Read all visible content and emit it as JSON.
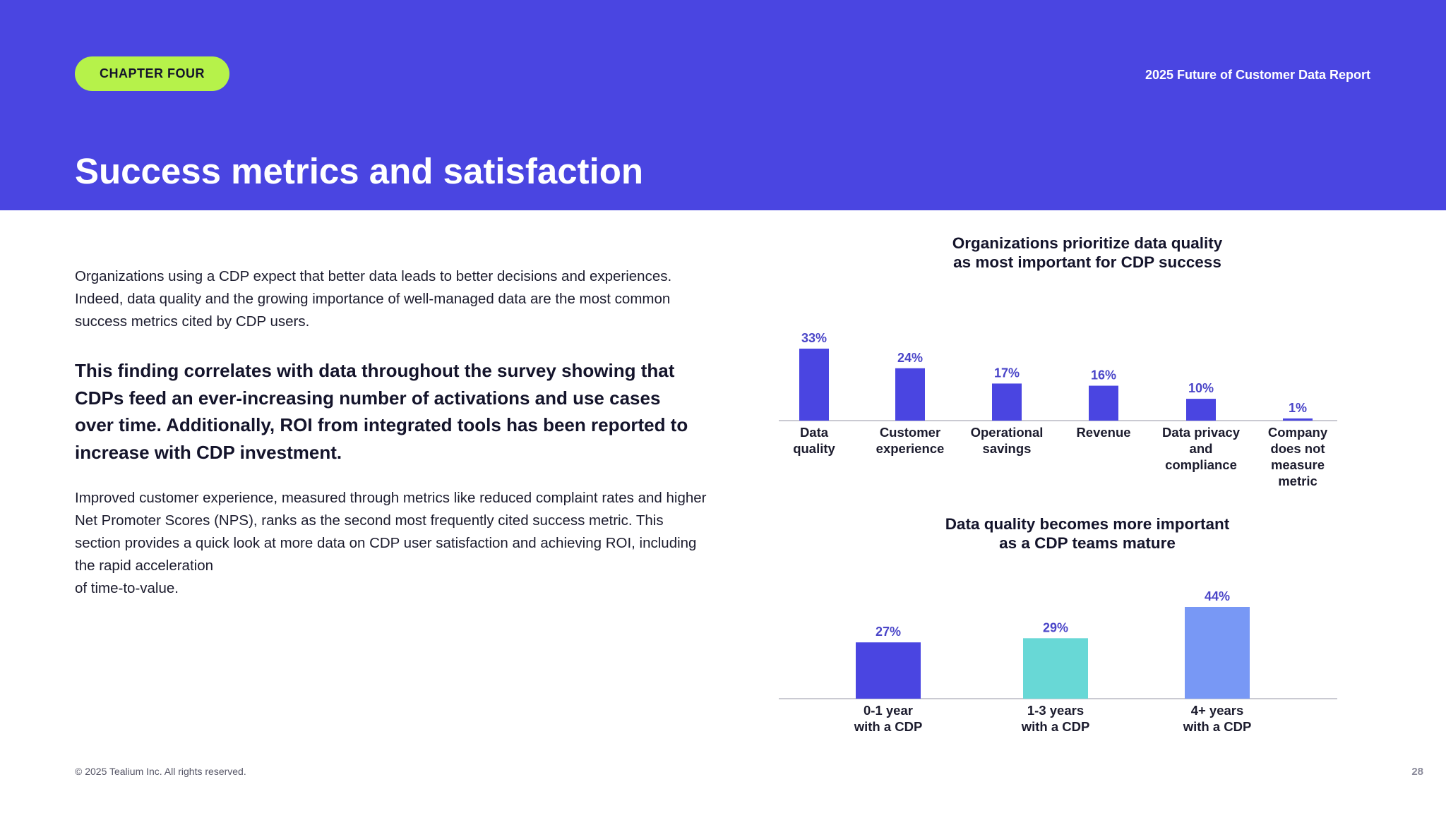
{
  "header": {
    "chapter": "CHAPTER FOUR",
    "report_title": "2025 Future of Customer Data Report",
    "page_title": "Success metrics and satisfaction"
  },
  "content": {
    "intro": "Organizations using a CDP expect that better data leads to better decisions and experiences. Indeed, data quality and the growing importance of well-managed data are the most common success metrics cited by CDP users.",
    "highlight": "This finding correlates with data throughout the survey showing that CDPs feed an ever-increasing number of activations and use cases over time. Additionally, ROI from integrated tools has been reported to increase with CDP investment.",
    "body_line1": "Improved customer experience, measured through metrics like reduced complaint rates and higher Net Promoter Scores (NPS), ranks as the second most frequently cited success metric. This section provides a quick look at more data on CDP user satisfaction and achieving ROI, including the rapid acceleration",
    "body_line2": "of time-to-value."
  },
  "chart_data": [
    {
      "type": "bar",
      "title_line1": "Organizations prioritize data quality",
      "title_line2": "as most important for CDP success",
      "categories": [
        [
          "Data",
          "quality"
        ],
        [
          "Customer",
          "experience"
        ],
        [
          "Operational",
          "savings"
        ],
        [
          "Revenue"
        ],
        [
          "Data privacy",
          "and",
          "compliance"
        ],
        [
          "Company",
          "does not",
          "measure",
          "metric"
        ]
      ],
      "values": [
        33,
        24,
        17,
        16,
        10,
        1
      ],
      "value_labels": [
        "33%",
        "24%",
        "17%",
        "16%",
        "10%",
        "1%"
      ],
      "colors": [
        "#4a45e1",
        "#4a45e1",
        "#4a45e1",
        "#4a45e1",
        "#4a45e1",
        "#4a45e1"
      ],
      "ylim": [
        0,
        33
      ],
      "grid": false
    },
    {
      "type": "bar",
      "title_line1": "Data quality becomes more important",
      "title_line2": "as a CDP teams mature",
      "categories": [
        [
          "0-1 year",
          "with a CDP"
        ],
        [
          "1-3 years",
          "with a CDP"
        ],
        [
          "4+ years",
          "with a CDP"
        ]
      ],
      "values": [
        27,
        29,
        44
      ],
      "value_labels": [
        "27%",
        "29%",
        "44%"
      ],
      "colors": [
        "#4a45e1",
        "#68d8d6",
        "#7898f5"
      ],
      "ylim": [
        0,
        44
      ],
      "grid": false
    }
  ],
  "footer": {
    "copyright": "© 2025 Tealium Inc. All rights reserved.",
    "page_number": "28"
  }
}
